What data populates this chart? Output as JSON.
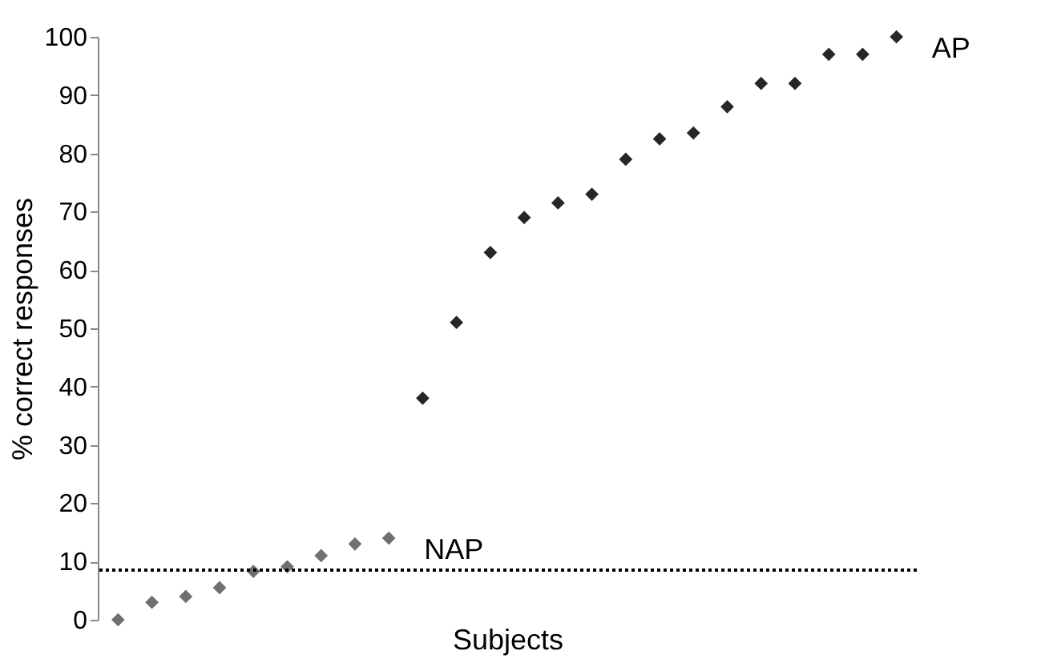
{
  "chart_data": {
    "type": "scatter",
    "xlabel": "Subjects",
    "ylabel": "% correct responses",
    "categories": [
      null,
      null,
      null,
      null,
      null,
      null,
      null,
      null,
      null,
      null,
      null,
      null,
      null,
      null,
      null,
      null,
      null,
      null,
      null,
      null,
      null,
      null,
      null,
      null
    ],
    "series": [
      {
        "name": "NAP",
        "color": "#707070",
        "values": [
          0,
          3,
          4,
          5.5,
          8.3,
          9.1,
          11,
          13,
          14,
          null,
          null,
          null,
          null,
          null,
          null,
          null,
          null,
          null,
          null,
          null,
          null,
          null,
          null,
          null
        ]
      },
      {
        "name": "AP",
        "color": "#262626",
        "values": [
          null,
          null,
          null,
          null,
          null,
          null,
          null,
          null,
          null,
          38,
          51,
          63,
          69,
          71.5,
          73,
          79,
          82.5,
          83.5,
          88,
          92,
          92,
          97,
          97,
          100
        ]
      }
    ],
    "ylim": [
      0,
      100
    ],
    "yticks": [
      0,
      10,
      20,
      30,
      40,
      50,
      60,
      70,
      80,
      90,
      100
    ],
    "ref_lines": [
      {
        "axis": "y",
        "value": 8.5,
        "color": "#000000",
        "line_style": "dotted"
      }
    ],
    "marker": "diamond",
    "grid": false,
    "tick_labels": "y"
  }
}
